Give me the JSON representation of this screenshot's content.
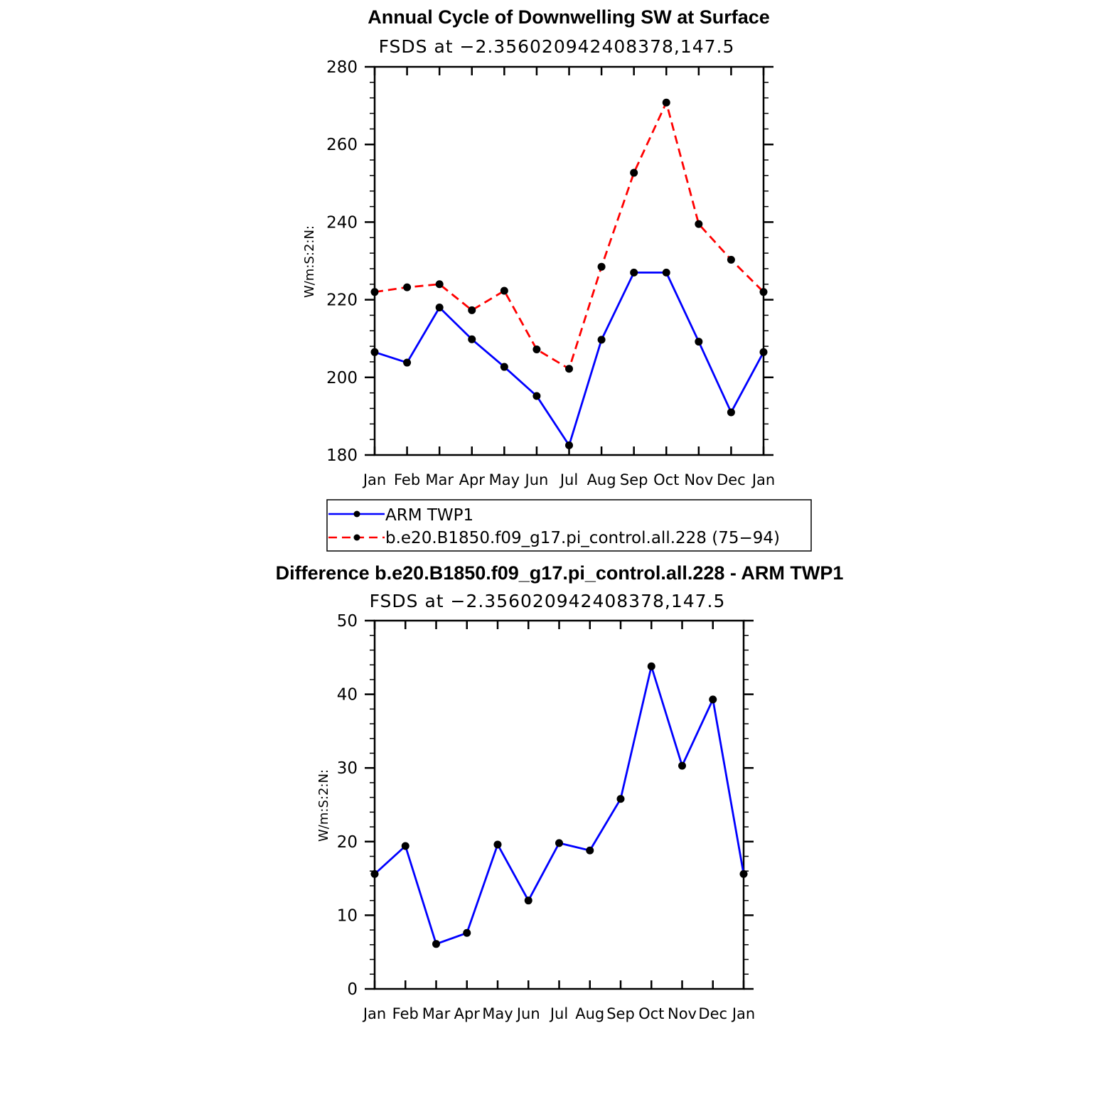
{
  "chart_data": [
    {
      "type": "line",
      "title": "Annual Cycle of Downwelling SW at Surface",
      "subtitle": "FSDS at −2.356020942408378,147.5",
      "ylabel": "W/m:S:2:N:",
      "ylim": [
        180,
        280
      ],
      "yticks": [
        "180",
        "200",
        "220",
        "240",
        "260",
        "280"
      ],
      "categories": [
        "Jan",
        "Feb",
        "Mar",
        "Apr",
        "May",
        "Jun",
        "Jul",
        "Aug",
        "Sep",
        "Oct",
        "Nov",
        "Dec",
        "Jan"
      ],
      "series": [
        {
          "name": "ARM TWP1",
          "color": "#0000ff",
          "dash": "solid",
          "values": [
            206.5,
            203.8,
            218.0,
            209.8,
            202.7,
            195.2,
            182.5,
            209.7,
            227.0,
            227.0,
            209.2,
            191.0,
            206.5
          ]
        },
        {
          "name": "b.e20.B1850.f09_g17.pi_control.all.228 (75−94)",
          "color": "#ff0000",
          "dash": "dashed",
          "values": [
            222.0,
            223.2,
            224.0,
            217.3,
            222.3,
            207.2,
            202.2,
            228.5,
            252.7,
            270.8,
            239.5,
            230.3,
            222.0
          ]
        }
      ],
      "legend": "below"
    },
    {
      "type": "line",
      "title": "Difference b.e20.B1850.f09_g17.pi_control.all.228 - ARM TWP1",
      "subtitle": "FSDS at −2.356020942408378,147.5",
      "ylabel": "W/m:S:2:N:",
      "ylim": [
        0,
        50
      ],
      "yticks": [
        "0",
        "10",
        "20",
        "30",
        "40",
        "50"
      ],
      "categories": [
        "Jan",
        "Feb",
        "Mar",
        "Apr",
        "May",
        "Jun",
        "Jul",
        "Aug",
        "Sep",
        "Oct",
        "Nov",
        "Dec",
        "Jan"
      ],
      "series": [
        {
          "name": "",
          "color": "#0000ff",
          "dash": "solid",
          "values": [
            15.6,
            19.4,
            6.1,
            7.6,
            19.6,
            12.0,
            19.8,
            18.8,
            25.8,
            43.8,
            30.3,
            39.3,
            15.6
          ]
        }
      ]
    }
  ]
}
